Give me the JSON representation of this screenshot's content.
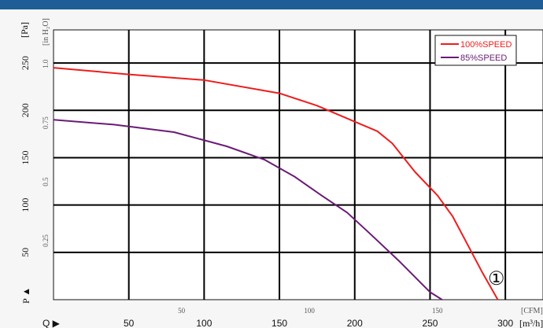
{
  "chart_data": {
    "type": "line",
    "y_unit_primary": "[Pa]",
    "y_unit_secondary": "[in H₂O]",
    "x_unit_primary": "[m³/h]",
    "x_unit_secondary": "[CFM]",
    "y_axis_symbol": "P ▲",
    "x_axis_symbol": "Q ▶",
    "xlim": [
      0,
      325
    ],
    "ylim": [
      0,
      285
    ],
    "x_ticks": [
      "50",
      "100",
      "150",
      "200",
      "250",
      "300"
    ],
    "y_ticks": [
      "50",
      "100",
      "150",
      "200",
      "250"
    ],
    "cfm_ticks": [
      "50",
      "100",
      "150"
    ],
    "inh2o_ticks": [
      "0.25",
      "0.5",
      "0.75",
      "1.0"
    ],
    "curve_marker": "①",
    "grid": true,
    "legend_position": "top-right",
    "series": [
      {
        "name": "100%SPEED",
        "color": "#ee1c1c",
        "points": [
          [
            0,
            245
          ],
          [
            50,
            238
          ],
          [
            100,
            232
          ],
          [
            150,
            218
          ],
          [
            175,
            205
          ],
          [
            200,
            188
          ],
          [
            215,
            178
          ],
          [
            225,
            165
          ],
          [
            240,
            135
          ],
          [
            255,
            110
          ],
          [
            265,
            88
          ],
          [
            275,
            58
          ],
          [
            285,
            28
          ],
          [
            295,
            0
          ]
        ]
      },
      {
        "name": "85%SPEED",
        "color": "#6a1b76",
        "points": [
          [
            0,
            190
          ],
          [
            40,
            185
          ],
          [
            80,
            177
          ],
          [
            115,
            162
          ],
          [
            140,
            148
          ],
          [
            160,
            130
          ],
          [
            178,
            110
          ],
          [
            195,
            92
          ],
          [
            210,
            70
          ],
          [
            230,
            40
          ],
          [
            250,
            8
          ],
          [
            258,
            0
          ]
        ]
      }
    ]
  }
}
